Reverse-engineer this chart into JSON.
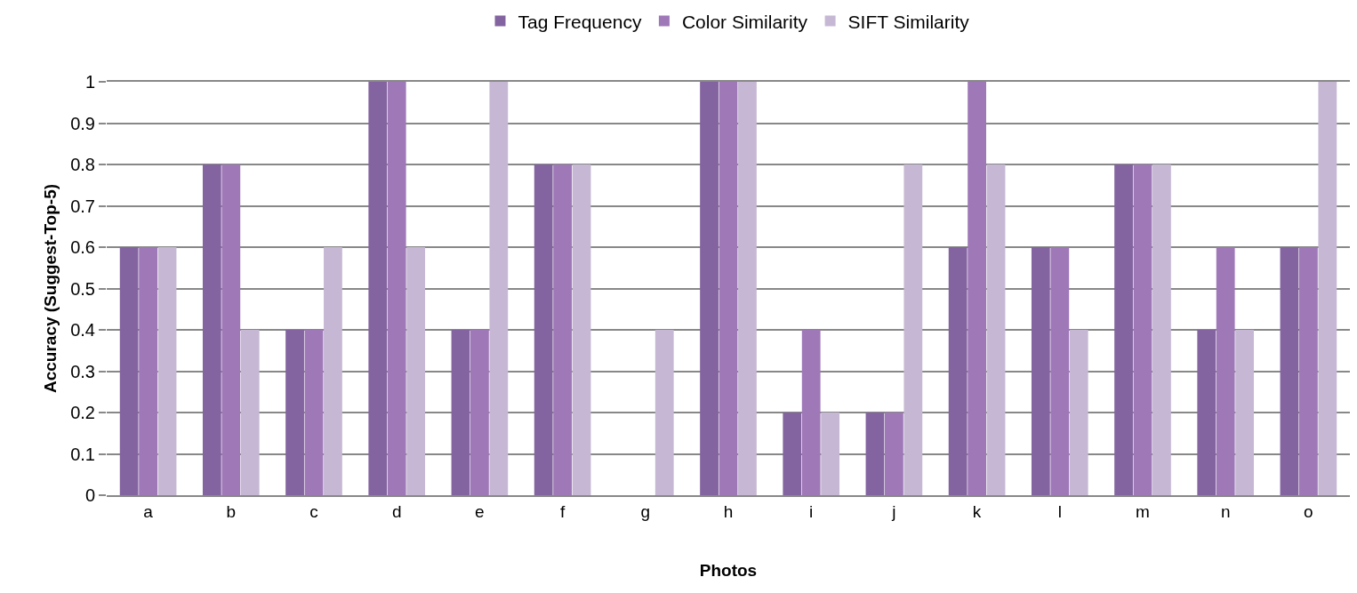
{
  "chart_data": {
    "type": "bar",
    "xlabel": "Photos",
    "ylabel": "Accuracy (Suggest-Top-5)",
    "categories": [
      "a",
      "b",
      "c",
      "d",
      "e",
      "f",
      "g",
      "h",
      "i",
      "j",
      "k",
      "l",
      "m",
      "n",
      "o"
    ],
    "series": [
      {
        "name": "Tag Frequency",
        "color": "#8464a0",
        "values": [
          0.6,
          0.8,
          0.4,
          1,
          0.4,
          0.8,
          0,
          1,
          0.2,
          0.2,
          0.6,
          0.6,
          0.8,
          0.4,
          0.6
        ]
      },
      {
        "name": "Color Similarity",
        "color": "#9f78b8",
        "values": [
          0.6,
          0.8,
          0.4,
          1,
          0.4,
          0.8,
          0,
          1,
          0.4,
          0.2,
          1,
          0.6,
          0.8,
          0.6,
          0.6
        ]
      },
      {
        "name": "SIFT Similarity",
        "color": "#c6b8d4",
        "values": [
          0.6,
          0.4,
          0.6,
          0.6,
          1,
          0.8,
          0.4,
          1,
          0.2,
          0.8,
          0.8,
          0.4,
          0.8,
          0.4,
          1
        ]
      }
    ],
    "ylim": [
      0,
      1
    ],
    "yticks": [
      0,
      0.1,
      0.2,
      0.3,
      0.4,
      0.5,
      0.6,
      0.7,
      0.8,
      0.9,
      1
    ],
    "grid": "y",
    "legend": "top"
  }
}
